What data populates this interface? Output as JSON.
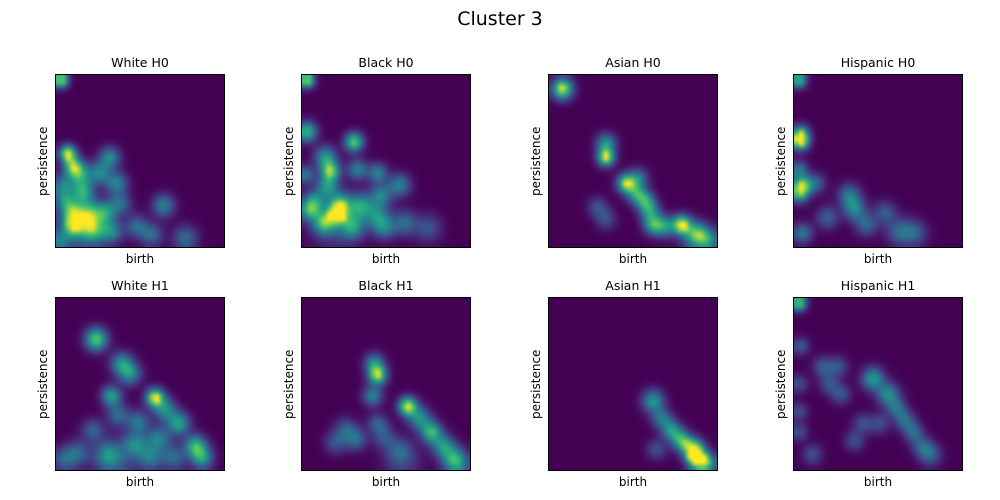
{
  "chart_data": {
    "type": "heatmap",
    "suptitle": "Cluster 3",
    "xlabel": "birth",
    "ylabel": "persistence",
    "grid_layout": [
      2,
      4
    ],
    "axes_ticks": "none",
    "colormap": "viridis",
    "colormap_stops": [
      [
        0.0,
        "#440154"
      ],
      [
        0.125,
        "#482878"
      ],
      [
        0.25,
        "#3e4989"
      ],
      [
        0.375,
        "#31688e"
      ],
      [
        0.5,
        "#26828e"
      ],
      [
        0.625,
        "#1f9e89"
      ],
      [
        0.75,
        "#35b779"
      ],
      [
        0.875,
        "#6ece58"
      ],
      [
        1.0,
        "#fde725"
      ]
    ],
    "value_range": [
      0,
      1
    ],
    "blob_format": [
      "x_frac_from_left",
      "y_frac_from_top",
      "intensity",
      "sigma_frac"
    ],
    "subplots": [
      {
        "title": "White H0",
        "row": 0,
        "col": 0,
        "blobs": [
          [
            0.03,
            0.03,
            1.0,
            0.03
          ],
          [
            0.07,
            0.455,
            1.0,
            0.033
          ],
          [
            0.1,
            0.53,
            0.7,
            0.04
          ],
          [
            0.32,
            0.48,
            0.55,
            0.042
          ],
          [
            0.14,
            0.58,
            0.6,
            0.048
          ],
          [
            0.26,
            0.57,
            0.5,
            0.045
          ],
          [
            0.16,
            0.68,
            0.65,
            0.045
          ],
          [
            0.36,
            0.63,
            0.5,
            0.045
          ],
          [
            0.04,
            0.64,
            0.45,
            0.04
          ],
          [
            0.05,
            0.72,
            0.45,
            0.04
          ],
          [
            0.38,
            0.75,
            0.4,
            0.045
          ],
          [
            0.64,
            0.76,
            0.5,
            0.045
          ],
          [
            0.09,
            0.79,
            0.6,
            0.045
          ],
          [
            0.19,
            0.8,
            0.6,
            0.05
          ],
          [
            0.29,
            0.8,
            0.55,
            0.045
          ],
          [
            0.1,
            0.88,
            0.7,
            0.045
          ],
          [
            0.22,
            0.9,
            0.6,
            0.05
          ],
          [
            0.33,
            0.91,
            0.5,
            0.045
          ],
          [
            0.48,
            0.88,
            0.4,
            0.045
          ],
          [
            0.57,
            0.93,
            0.4,
            0.045
          ],
          [
            0.77,
            0.95,
            0.4,
            0.05
          ],
          [
            0.02,
            0.97,
            0.4,
            0.04
          ],
          [
            0.15,
            0.9,
            0.3,
            0.1
          ]
        ]
      },
      {
        "title": "Black H0",
        "row": 0,
        "col": 1,
        "blobs": [
          [
            0.03,
            0.03,
            1.0,
            0.03
          ],
          [
            0.03,
            0.33,
            0.75,
            0.04
          ],
          [
            0.31,
            0.39,
            0.85,
            0.038
          ],
          [
            0.14,
            0.48,
            0.6,
            0.045
          ],
          [
            0.17,
            0.56,
            0.8,
            0.04
          ],
          [
            0.33,
            0.55,
            0.5,
            0.04
          ],
          [
            0.45,
            0.57,
            0.5,
            0.04
          ],
          [
            0.02,
            0.58,
            0.45,
            0.035
          ],
          [
            0.15,
            0.65,
            0.55,
            0.045
          ],
          [
            0.58,
            0.64,
            0.5,
            0.045
          ],
          [
            0.47,
            0.7,
            0.5,
            0.045
          ],
          [
            0.07,
            0.74,
            0.55,
            0.045
          ],
          [
            0.23,
            0.75,
            0.65,
            0.045
          ],
          [
            0.35,
            0.76,
            0.6,
            0.05
          ],
          [
            0.21,
            0.81,
            1.0,
            0.035
          ],
          [
            0.04,
            0.79,
            0.5,
            0.04
          ],
          [
            0.45,
            0.82,
            0.5,
            0.05
          ],
          [
            0.13,
            0.86,
            0.65,
            0.045
          ],
          [
            0.3,
            0.88,
            0.55,
            0.05
          ],
          [
            0.49,
            0.89,
            0.45,
            0.045
          ],
          [
            0.61,
            0.86,
            0.4,
            0.05
          ],
          [
            0.75,
            0.89,
            0.3,
            0.055
          ],
          [
            0.2,
            0.85,
            0.3,
            0.1
          ]
        ]
      },
      {
        "title": "Asian H0",
        "row": 0,
        "col": 2,
        "blobs": [
          [
            0.08,
            0.08,
            1.0,
            0.042
          ],
          [
            0.34,
            0.4,
            0.6,
            0.04
          ],
          [
            0.34,
            0.48,
            0.95,
            0.035
          ],
          [
            0.46,
            0.63,
            0.9,
            0.038
          ],
          [
            0.52,
            0.69,
            0.55,
            0.04
          ],
          [
            0.53,
            0.6,
            0.45,
            0.04
          ],
          [
            0.57,
            0.73,
            0.55,
            0.04
          ],
          [
            0.6,
            0.79,
            0.55,
            0.04
          ],
          [
            0.62,
            0.87,
            0.65,
            0.04
          ],
          [
            0.69,
            0.88,
            0.55,
            0.042
          ],
          [
            0.79,
            0.87,
            1.0,
            0.038
          ],
          [
            0.88,
            0.92,
            0.5,
            0.045
          ],
          [
            0.95,
            0.96,
            0.5,
            0.045
          ],
          [
            0.29,
            0.77,
            0.3,
            0.04
          ],
          [
            0.34,
            0.84,
            0.28,
            0.04
          ],
          [
            0.87,
            0.95,
            0.35,
            0.06
          ]
        ]
      },
      {
        "title": "Hispanic H0",
        "row": 0,
        "col": 3,
        "blobs": [
          [
            0.03,
            0.03,
            0.8,
            0.03
          ],
          [
            0.04,
            0.34,
            0.7,
            0.035
          ],
          [
            0.04,
            0.39,
            1.0,
            0.033
          ],
          [
            0.03,
            0.55,
            0.45,
            0.035
          ],
          [
            0.05,
            0.64,
            0.75,
            0.038
          ],
          [
            0.03,
            0.69,
            0.65,
            0.038
          ],
          [
            0.13,
            0.63,
            0.35,
            0.04
          ],
          [
            0.33,
            0.7,
            0.45,
            0.045
          ],
          [
            0.36,
            0.78,
            0.5,
            0.045
          ],
          [
            0.2,
            0.83,
            0.35,
            0.045
          ],
          [
            0.43,
            0.87,
            0.38,
            0.045
          ],
          [
            0.54,
            0.8,
            0.32,
            0.045
          ],
          [
            0.63,
            0.91,
            0.38,
            0.055
          ],
          [
            0.72,
            0.92,
            0.32,
            0.05
          ],
          [
            0.05,
            0.92,
            0.45,
            0.04
          ]
        ]
      },
      {
        "title": "White H1",
        "row": 1,
        "col": 0,
        "blobs": [
          [
            0.24,
            0.24,
            0.85,
            0.045
          ],
          [
            0.39,
            0.38,
            0.55,
            0.045
          ],
          [
            0.44,
            0.44,
            0.55,
            0.045
          ],
          [
            0.33,
            0.57,
            0.65,
            0.04
          ],
          [
            0.59,
            0.58,
            1.0,
            0.038
          ],
          [
            0.65,
            0.65,
            0.55,
            0.045
          ],
          [
            0.37,
            0.68,
            0.4,
            0.045
          ],
          [
            0.49,
            0.72,
            0.45,
            0.045
          ],
          [
            0.73,
            0.73,
            0.65,
            0.045
          ],
          [
            0.22,
            0.77,
            0.35,
            0.045
          ],
          [
            0.47,
            0.85,
            0.5,
            0.05
          ],
          [
            0.61,
            0.82,
            0.5,
            0.05
          ],
          [
            0.83,
            0.86,
            0.7,
            0.045
          ],
          [
            0.87,
            0.93,
            0.6,
            0.045
          ],
          [
            0.31,
            0.91,
            0.4,
            0.05
          ],
          [
            0.13,
            0.9,
            0.35,
            0.05
          ],
          [
            0.05,
            0.94,
            0.35,
            0.05
          ],
          [
            0.56,
            0.93,
            0.45,
            0.05
          ],
          [
            0.7,
            0.93,
            0.4,
            0.05
          ],
          [
            0.35,
            0.95,
            0.3,
            0.09
          ]
        ]
      },
      {
        "title": "Black H1",
        "row": 1,
        "col": 1,
        "blobs": [
          [
            0.43,
            0.38,
            0.55,
            0.04
          ],
          [
            0.45,
            0.45,
            0.9,
            0.038
          ],
          [
            0.42,
            0.57,
            0.5,
            0.04
          ],
          [
            0.63,
            0.63,
            1.0,
            0.038
          ],
          [
            0.7,
            0.7,
            0.55,
            0.045
          ],
          [
            0.77,
            0.78,
            0.75,
            0.042
          ],
          [
            0.84,
            0.86,
            0.55,
            0.045
          ],
          [
            0.9,
            0.93,
            0.5,
            0.05
          ],
          [
            0.93,
            0.97,
            0.4,
            0.05
          ],
          [
            0.45,
            0.73,
            0.35,
            0.04
          ],
          [
            0.26,
            0.76,
            0.3,
            0.045
          ],
          [
            0.32,
            0.82,
            0.4,
            0.045
          ],
          [
            0.2,
            0.84,
            0.3,
            0.045
          ],
          [
            0.49,
            0.81,
            0.3,
            0.045
          ],
          [
            0.58,
            0.89,
            0.28,
            0.05
          ],
          [
            0.6,
            0.95,
            0.2,
            0.08
          ]
        ]
      },
      {
        "title": "Asian H1",
        "row": 1,
        "col": 2,
        "blobs": [
          [
            0.62,
            0.6,
            0.6,
            0.045
          ],
          [
            0.67,
            0.7,
            0.45,
            0.04
          ],
          [
            0.73,
            0.77,
            0.6,
            0.04
          ],
          [
            0.79,
            0.83,
            0.7,
            0.04
          ],
          [
            0.86,
            0.88,
            1.0,
            0.042
          ],
          [
            0.88,
            0.94,
            0.95,
            0.04
          ],
          [
            0.94,
            0.96,
            0.7,
            0.04
          ],
          [
            0.64,
            0.88,
            0.28,
            0.04
          ]
        ]
      },
      {
        "title": "Hispanic H1",
        "row": 1,
        "col": 3,
        "blobs": [
          [
            0.03,
            0.03,
            0.9,
            0.03
          ],
          [
            0.04,
            0.28,
            0.32,
            0.035
          ],
          [
            0.17,
            0.4,
            0.32,
            0.04
          ],
          [
            0.26,
            0.4,
            0.32,
            0.04
          ],
          [
            0.21,
            0.5,
            0.3,
            0.04
          ],
          [
            0.28,
            0.56,
            0.3,
            0.04
          ],
          [
            0.47,
            0.47,
            0.62,
            0.045
          ],
          [
            0.56,
            0.56,
            0.55,
            0.045
          ],
          [
            0.61,
            0.64,
            0.4,
            0.04
          ],
          [
            0.66,
            0.71,
            0.38,
            0.04
          ],
          [
            0.71,
            0.78,
            0.38,
            0.04
          ],
          [
            0.03,
            0.5,
            0.28,
            0.035
          ],
          [
            0.03,
            0.66,
            0.28,
            0.035
          ],
          [
            0.03,
            0.78,
            0.28,
            0.035
          ],
          [
            0.41,
            0.73,
            0.28,
            0.04
          ],
          [
            0.51,
            0.73,
            0.28,
            0.04
          ],
          [
            0.36,
            0.83,
            0.28,
            0.04
          ],
          [
            0.76,
            0.86,
            0.32,
            0.04
          ],
          [
            0.81,
            0.91,
            0.38,
            0.045
          ],
          [
            0.11,
            0.91,
            0.28,
            0.04
          ]
        ]
      }
    ]
  }
}
